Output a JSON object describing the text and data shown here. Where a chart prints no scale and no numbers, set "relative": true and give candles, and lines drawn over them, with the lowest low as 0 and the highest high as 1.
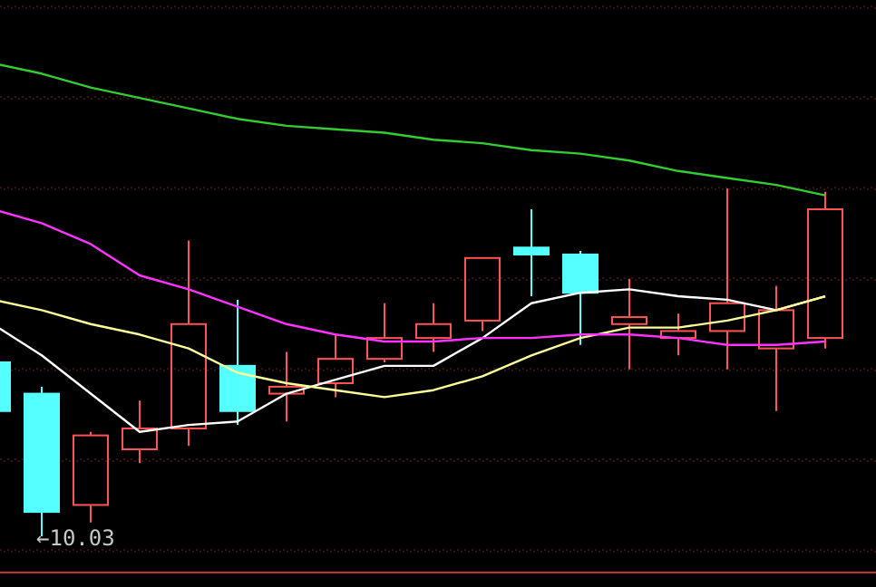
{
  "chart_data": {
    "type": "candlestick",
    "relative": true,
    "categories": [
      null,
      null,
      null,
      null,
      null,
      null,
      null,
      null,
      null,
      null,
      null,
      null,
      null,
      null,
      null,
      null,
      null,
      null
    ],
    "ohlc": [
      [
        0.5,
        0.51,
        0.35,
        0.36
      ],
      [
        0.41,
        0.43,
        0,
        0.07
      ],
      [
        0.09,
        0.3,
        0.04,
        0.29
      ],
      [
        0.25,
        0.39,
        0.21,
        0.31
      ],
      [
        0.31,
        0.85,
        0.26,
        0.61
      ],
      [
        0.49,
        0.68,
        0.32,
        0.36
      ],
      [
        0.41,
        0.53,
        0.33,
        0.43
      ],
      [
        0.44,
        0.58,
        0.4,
        0.51
      ],
      [
        0.51,
        0.67,
        0.5,
        0.57
      ],
      [
        0.57,
        0.67,
        0.53,
        0.61
      ],
      [
        0.62,
        0.8,
        0.59,
        0.8
      ],
      [
        0.83,
        0.94,
        0.69,
        0.81
      ],
      [
        0.81,
        0.82,
        0.55,
        0.7
      ],
      [
        0.61,
        0.74,
        0.48,
        0.63
      ],
      [
        0.57,
        0.64,
        0.52,
        0.59
      ],
      [
        0.59,
        1,
        0.48,
        0.67
      ],
      [
        0.54,
        0.72,
        0.36,
        0.65
      ],
      [
        0.57,
        0.99,
        0.54,
        0.94
      ]
    ],
    "colors": [
      "#54ffff",
      "#54ffff",
      "#ff5454",
      "#ff5454",
      "#ff5454",
      "#54ffff",
      "#ff5454",
      "#ff5454",
      "#ff5454",
      "#ff5454",
      "#ff5454",
      "#54ffff",
      "#54ffff",
      "#ff5454",
      "#ff5454",
      "#ff5454",
      "#ff5454",
      "#ff5454"
    ],
    "series": [
      {
        "type": "line",
        "color": "#ffffff",
        "values": [
          0.61,
          0.52,
          0.41,
          0.3,
          0.32,
          0.33,
          0.41,
          0.45,
          0.49,
          0.49,
          0.57,
          0.67,
          0.7,
          0.71,
          0.69,
          0.68,
          0.65,
          0.69
        ]
      },
      {
        "type": "line",
        "color": "#ffff99",
        "values": [
          0.68,
          0.65,
          0.61,
          0.58,
          0.54,
          0.47,
          0.44,
          0.42,
          0.4,
          0.42,
          0.46,
          0.52,
          0.57,
          0.6,
          0.6,
          0.62,
          0.65,
          0.69
        ]
      },
      {
        "type": "line",
        "color": "#ff33ff",
        "values": [
          0.94,
          0.9,
          0.84,
          0.75,
          0.71,
          0.66,
          0.61,
          0.58,
          0.56,
          0.56,
          0.57,
          0.57,
          0.58,
          0.58,
          0.57,
          0.55,
          0.55,
          0.56
        ]
      },
      {
        "type": "line",
        "color": "#33cc33",
        "values": [
          1.36,
          1.33,
          1.29,
          1.26,
          1.23,
          1.2,
          1.18,
          1.17,
          1.16,
          1.14,
          1.13,
          1.11,
          1.1,
          1.08,
          1.05,
          1.03,
          1.01,
          0.98
        ]
      }
    ],
    "annotations": [
      "←10.03"
    ]
  }
}
